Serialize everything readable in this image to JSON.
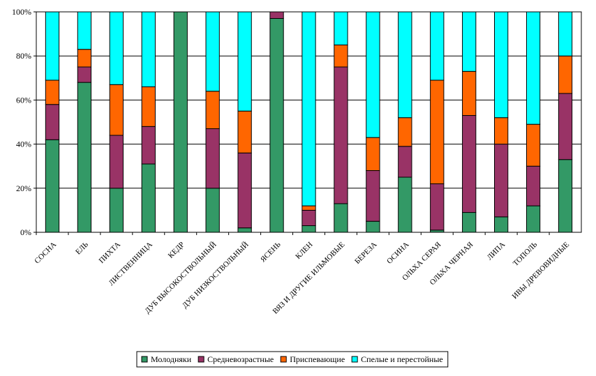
{
  "chart_data": {
    "type": "bar",
    "stacked": "percent",
    "ylim": [
      0,
      100
    ],
    "yticks": [
      "0%",
      "20%",
      "40%",
      "60%",
      "80%",
      "100%"
    ],
    "grid": true,
    "legend_position": "bottom",
    "categories": [
      "СОСНА",
      "ЕЛЬ",
      "ПИХТА",
      "ЛИСТВЕННИЦА",
      "КЕДР",
      "ДУБ ВЫСОКОСТВОЛЬНЫЙ",
      "ДУБ НИЗКОСТВОЛЬНЫЙ",
      "ЯСЕНЬ",
      "КЛЕН",
      "ВЯЗ И ДРУГИЕ ИЛЬМОВЫЕ",
      "БЕРЕЗА",
      "ОСИНА",
      "ОЛЬХА СЕРАЯ",
      "ОЛЬХА ЧЕРНАЯ",
      "ЛИПА",
      "ТОПОЛЬ",
      "ИВЫ ДРЕВОВИДНЫЕ"
    ],
    "series": [
      {
        "name": "Молодняки",
        "color": "#339966",
        "values": [
          42,
          68,
          20,
          31,
          100,
          20,
          2,
          97,
          3,
          13,
          5,
          25,
          1,
          9,
          7,
          12,
          33
        ]
      },
      {
        "name": "Средневозрастные",
        "color": "#993366",
        "values": [
          16,
          7,
          24,
          17,
          0,
          27,
          34,
          3,
          7,
          62,
          23,
          14,
          21,
          44,
          33,
          18,
          30
        ]
      },
      {
        "name": "Приспевающие",
        "color": "#ff6600",
        "values": [
          11,
          8,
          23,
          18,
          0,
          17,
          19,
          0,
          2,
          10,
          15,
          13,
          47,
          20,
          12,
          19,
          17
        ]
      },
      {
        "name": "Спелые и перестойные",
        "color": "#00ffff",
        "values": [
          31,
          17,
          33,
          34,
          0,
          36,
          45,
          0,
          88,
          15,
          57,
          48,
          31,
          27,
          48,
          51,
          20
        ]
      }
    ]
  }
}
